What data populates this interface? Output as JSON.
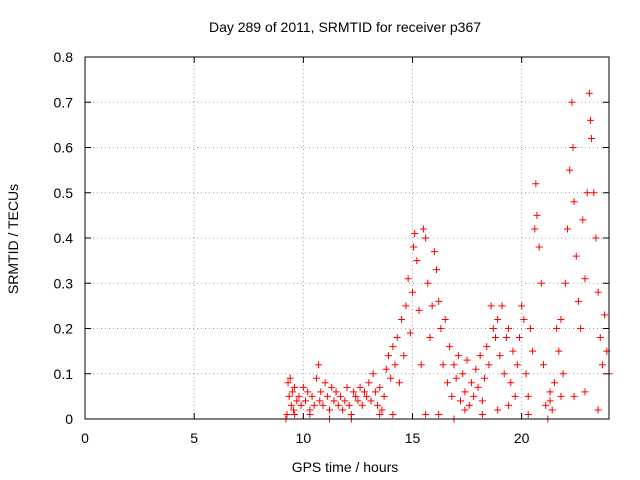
{
  "chart_data": {
    "type": "scatter",
    "title": "Day 289 of 2011, SRMTID for receiver p367",
    "xlabel": "GPS time / hours",
    "ylabel": "SRMTID / TECUs",
    "xlim": [
      0,
      24
    ],
    "ylim": [
      0,
      0.8
    ],
    "xticks": [
      0,
      5,
      10,
      15,
      20
    ],
    "xtick_labels": [
      "0",
      "5",
      "10",
      "15",
      "20"
    ],
    "yticks": [
      0,
      0.1,
      0.2,
      0.3,
      0.4,
      0.5,
      0.6,
      0.7,
      0.8
    ],
    "ytick_labels": [
      "0",
      "0.1",
      "0.2",
      "0.3",
      "0.4",
      "0.5",
      "0.6",
      "0.7",
      "0.8"
    ],
    "grid": true,
    "marker": "plus",
    "marker_color": "#ff0000",
    "series": [
      {
        "name": "SRMTID",
        "points": [
          [
            9.2,
            0.0
          ],
          [
            9.3,
            0.08
          ],
          [
            9.35,
            0.05
          ],
          [
            9.4,
            0.09
          ],
          [
            9.45,
            0.03
          ],
          [
            9.5,
            0.06
          ],
          [
            9.55,
            0.02
          ],
          [
            9.6,
            0.07
          ],
          [
            9.7,
            0.04
          ],
          [
            9.8,
            0.05
          ],
          [
            9.9,
            0.03
          ],
          [
            10.0,
            0.07
          ],
          [
            10.1,
            0.04
          ],
          [
            10.2,
            0.06
          ],
          [
            10.3,
            0.02
          ],
          [
            10.4,
            0.05
          ],
          [
            10.5,
            0.03
          ],
          [
            10.6,
            0.09
          ],
          [
            10.7,
            0.12
          ],
          [
            10.75,
            0.04
          ],
          [
            10.8,
            0.06
          ],
          [
            10.9,
            0.03
          ],
          [
            11.0,
            0.08
          ],
          [
            11.1,
            0.05
          ],
          [
            11.2,
            0.02
          ],
          [
            11.3,
            0.07
          ],
          [
            11.4,
            0.04
          ],
          [
            11.5,
            0.06
          ],
          [
            11.6,
            0.03
          ],
          [
            11.7,
            0.05
          ],
          [
            11.8,
            0.02
          ],
          [
            11.9,
            0.04
          ],
          [
            12.0,
            0.07
          ],
          [
            12.1,
            0.03
          ],
          [
            12.2,
            0.0
          ],
          [
            12.3,
            0.06
          ],
          [
            12.4,
            0.05
          ],
          [
            12.5,
            0.04
          ],
          [
            12.6,
            0.07
          ],
          [
            12.7,
            0.03
          ],
          [
            12.8,
            0.06
          ],
          [
            12.9,
            0.05
          ],
          [
            13.0,
            0.08
          ],
          [
            13.1,
            0.04
          ],
          [
            13.2,
            0.1
          ],
          [
            13.3,
            0.06
          ],
          [
            13.4,
            0.03
          ],
          [
            13.5,
            0.07
          ],
          [
            13.6,
            0.02
          ],
          [
            13.7,
            0.05
          ],
          [
            13.8,
            0.11
          ],
          [
            13.9,
            0.14
          ],
          [
            14.0,
            0.09
          ],
          [
            14.1,
            0.16
          ],
          [
            14.2,
            0.12
          ],
          [
            14.3,
            0.18
          ],
          [
            14.4,
            0.08
          ],
          [
            14.5,
            0.22
          ],
          [
            14.6,
            0.14
          ],
          [
            14.7,
            0.25
          ],
          [
            14.8,
            0.31
          ],
          [
            14.9,
            0.19
          ],
          [
            15.0,
            0.28
          ],
          [
            15.05,
            0.38
          ],
          [
            15.1,
            0.41
          ],
          [
            15.2,
            0.35
          ],
          [
            15.3,
            0.24
          ],
          [
            15.4,
            0.12
          ],
          [
            15.5,
            0.42
          ],
          [
            15.6,
            0.4
          ],
          [
            15.7,
            0.3
          ],
          [
            15.8,
            0.18
          ],
          [
            15.9,
            0.25
          ],
          [
            16.0,
            0.37
          ],
          [
            16.1,
            0.33
          ],
          [
            16.2,
            0.26
          ],
          [
            16.3,
            0.2
          ],
          [
            16.4,
            0.12
          ],
          [
            16.5,
            0.22
          ],
          [
            16.6,
            0.08
          ],
          [
            16.7,
            0.16
          ],
          [
            16.8,
            0.05
          ],
          [
            16.9,
            0.12
          ],
          [
            17.0,
            0.09
          ],
          [
            17.1,
            0.14
          ],
          [
            17.2,
            0.04
          ],
          [
            17.3,
            0.1
          ],
          [
            17.4,
            0.06
          ],
          [
            17.5,
            0.13
          ],
          [
            17.6,
            0.03
          ],
          [
            17.7,
            0.08
          ],
          [
            17.8,
            0.05
          ],
          [
            17.9,
            0.11
          ],
          [
            18.0,
            0.07
          ],
          [
            18.1,
            0.14
          ],
          [
            18.2,
            0.04
          ],
          [
            18.3,
            0.09
          ],
          [
            18.4,
            0.16
          ],
          [
            18.5,
            0.12
          ],
          [
            18.6,
            0.25
          ],
          [
            18.7,
            0.2
          ],
          [
            18.8,
            0.18
          ],
          [
            18.9,
            0.22
          ],
          [
            19.0,
            0.14
          ],
          [
            19.1,
            0.25
          ],
          [
            19.2,
            0.1
          ],
          [
            19.3,
            0.18
          ],
          [
            19.4,
            0.2
          ],
          [
            19.5,
            0.08
          ],
          [
            19.6,
            0.15
          ],
          [
            19.7,
            0.05
          ],
          [
            19.8,
            0.12
          ],
          [
            19.9,
            0.18
          ],
          [
            20.0,
            0.25
          ],
          [
            20.1,
            0.22
          ],
          [
            20.2,
            0.1
          ],
          [
            20.3,
            0.05
          ],
          [
            20.4,
            0.2
          ],
          [
            20.5,
            0.15
          ],
          [
            20.6,
            0.42
          ],
          [
            20.65,
            0.52
          ],
          [
            20.7,
            0.45
          ],
          [
            20.8,
            0.38
          ],
          [
            20.9,
            0.3
          ],
          [
            21.0,
            0.12
          ],
          [
            21.1,
            0.03
          ],
          [
            21.2,
            0.0
          ],
          [
            21.3,
            0.06
          ],
          [
            21.4,
            0.02
          ],
          [
            21.5,
            0.08
          ],
          [
            21.6,
            0.2
          ],
          [
            21.7,
            0.15
          ],
          [
            21.8,
            0.22
          ],
          [
            21.9,
            0.1
          ],
          [
            22.0,
            0.3
          ],
          [
            22.1,
            0.42
          ],
          [
            22.2,
            0.55
          ],
          [
            22.3,
            0.7
          ],
          [
            22.35,
            0.6
          ],
          [
            22.4,
            0.48
          ],
          [
            22.5,
            0.36
          ],
          [
            22.6,
            0.26
          ],
          [
            22.7,
            0.2
          ],
          [
            22.8,
            0.44
          ],
          [
            22.9,
            0.31
          ],
          [
            23.0,
            0.5
          ],
          [
            23.1,
            0.72
          ],
          [
            23.15,
            0.66
          ],
          [
            23.2,
            0.62
          ],
          [
            23.3,
            0.5
          ],
          [
            23.4,
            0.4
          ],
          [
            23.5,
            0.28
          ],
          [
            23.6,
            0.18
          ],
          [
            23.7,
            0.12
          ],
          [
            23.8,
            0.23
          ],
          [
            23.9,
            0.15
          ],
          [
            24.0,
            0.1
          ],
          [
            9.25,
            0.01
          ],
          [
            9.6,
            0.01
          ],
          [
            10.3,
            0.01
          ],
          [
            11.2,
            0.0
          ],
          [
            12.2,
            0.01
          ],
          [
            13.5,
            0.01
          ],
          [
            14.1,
            0.01
          ],
          [
            15.6,
            0.01
          ],
          [
            16.2,
            0.01
          ],
          [
            16.9,
            0.0
          ],
          [
            17.4,
            0.02
          ],
          [
            18.2,
            0.01
          ],
          [
            18.9,
            0.02
          ],
          [
            19.4,
            0.03
          ],
          [
            20.3,
            0.01
          ],
          [
            21.3,
            0.04
          ],
          [
            21.8,
            0.05
          ],
          [
            22.4,
            0.05
          ],
          [
            22.9,
            0.06
          ],
          [
            23.5,
            0.02
          ]
        ]
      }
    ]
  }
}
